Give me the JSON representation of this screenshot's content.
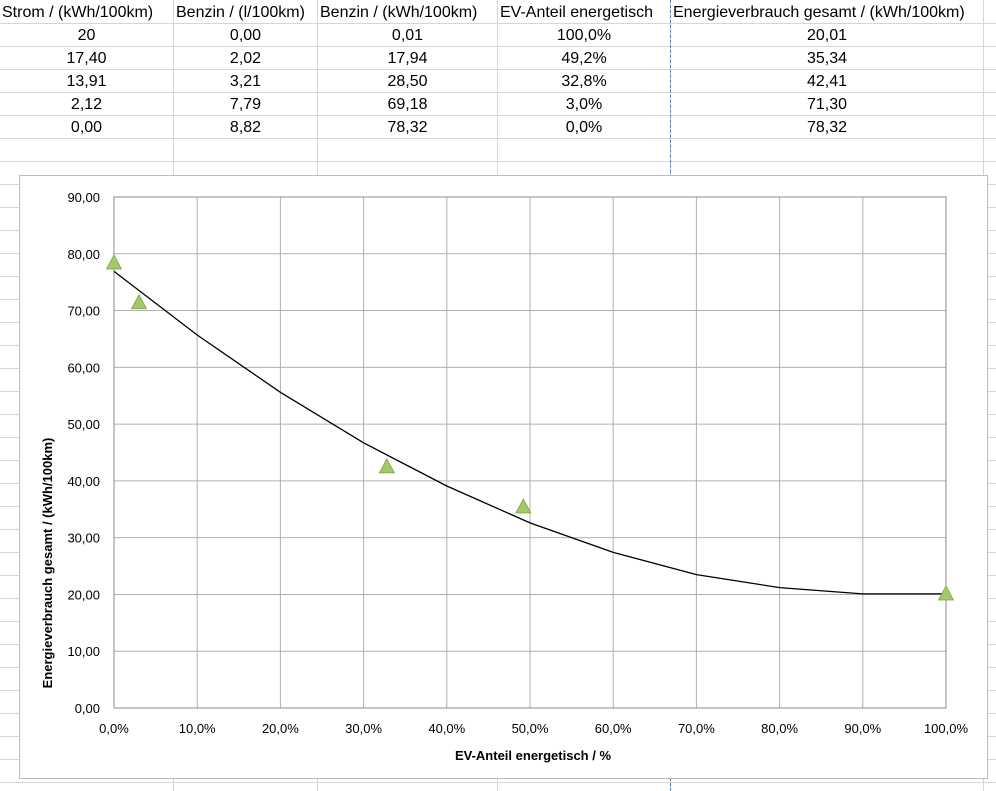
{
  "table": {
    "headers": [
      "Strom / (kWh/100km)",
      "Benzin / (l/100km)",
      "Benzin / (kWh/100km)",
      "EV-Anteil energetisch",
      "Energieverbrauch gesamt / (kWh/100km)"
    ],
    "rows": [
      [
        "20",
        "0,00",
        "0,01",
        "100,0%",
        "20,01"
      ],
      [
        "17,40",
        "2,02",
        "17,94",
        "49,2%",
        "35,34"
      ],
      [
        "13,91",
        "3,21",
        "28,50",
        "32,8%",
        "42,41"
      ],
      [
        "2,12",
        "7,79",
        "69,18",
        "3,0%",
        "71,30"
      ],
      [
        "0,00",
        "8,82",
        "78,32",
        "0,0%",
        "78,32"
      ]
    ]
  },
  "chart_data": {
    "type": "scatter",
    "title": "",
    "xlabel": "EV-Anteil energetisch / %",
    "ylabel": "Energieverbrauch gesamt / (kWh/100km)",
    "xlim": [
      0,
      100
    ],
    "ylim": [
      0,
      90
    ],
    "x_ticks": [
      "0,0%",
      "10,0%",
      "20,0%",
      "30,0%",
      "40,0%",
      "50,0%",
      "60,0%",
      "70,0%",
      "80,0%",
      "90,0%",
      "100,0%"
    ],
    "y_ticks": [
      "0,00",
      "10,00",
      "20,00",
      "30,00",
      "40,00",
      "50,00",
      "60,00",
      "70,00",
      "80,00",
      "90,00"
    ],
    "grid": true,
    "legend": "none",
    "points": [
      {
        "x": 100.0,
        "y": 20.01
      },
      {
        "x": 49.2,
        "y": 35.34
      },
      {
        "x": 32.8,
        "y": 42.41
      },
      {
        "x": 3.0,
        "y": 71.3
      },
      {
        "x": 0.0,
        "y": 78.32
      }
    ],
    "trendline": {
      "type": "polynomial",
      "order": 2,
      "x": [
        0,
        10,
        20,
        30,
        40,
        50,
        60,
        70,
        80,
        90,
        100
      ],
      "y": [
        76.9,
        65.7,
        55.6,
        46.7,
        39.1,
        32.6,
        27.4,
        23.5,
        21.2,
        20.1,
        20.1
      ]
    },
    "colors": {
      "marker": "#a3c96a",
      "marker_edge": "#7ea34a",
      "trendline": "#000000",
      "grid": "#b0b0b0"
    }
  }
}
